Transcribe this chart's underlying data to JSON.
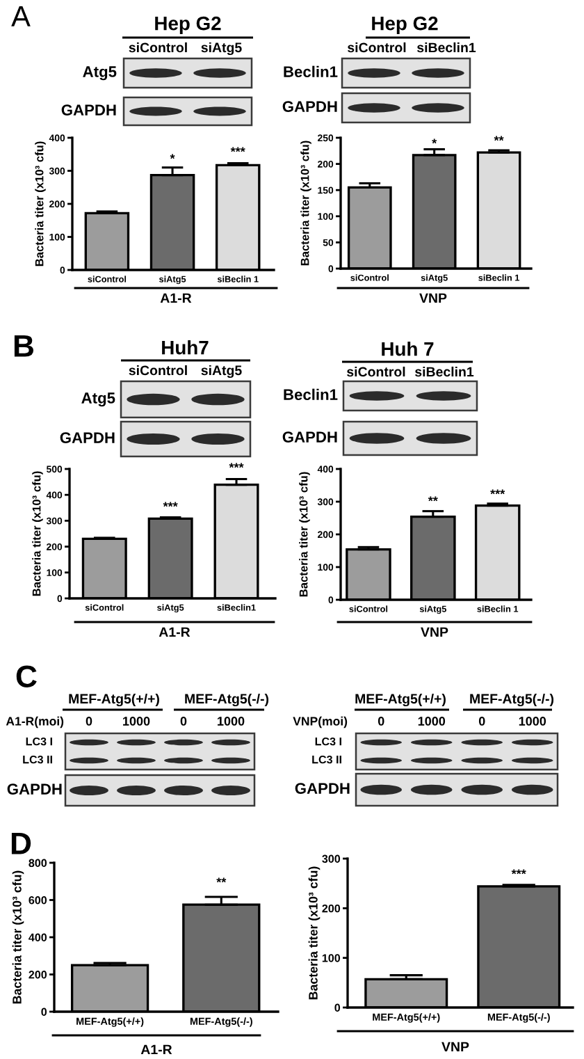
{
  "chart_data": [
    {
      "type": "other",
      "title": "A"
    },
    {
      "type": "other",
      "title": "Hep G2",
      "categories": [
        "siControl",
        "siAtg5"
      ],
      "y_categories": [
        "Atg5",
        "GAPDH"
      ]
    },
    {
      "type": "other",
      "title": "Hep G2",
      "categories": [
        "siControl",
        "siBeclin1"
      ],
      "y_categories": [
        "Beclin1",
        "GAPDH"
      ]
    },
    {
      "type": "bar",
      "categories": [
        "siControl",
        "siAtg5",
        "siBeclin 1"
      ],
      "values": [
        172,
        287,
        317
      ],
      "errors": [
        [
          172,
          177
        ],
        [
          287,
          310
        ],
        [
          317,
          323
        ]
      ],
      "colors": [
        "#9c9c9c",
        "#6b6b6b",
        "#dcdcdc"
      ],
      "ylim": [
        0,
        400
      ],
      "yticks": [
        0,
        100,
        200,
        300,
        400
      ],
      "xlabel": "A1-R",
      "ylabel": "Bacteria titer (x10³ cfu)",
      "annotations": [
        "*",
        "***"
      ]
    },
    {
      "type": "bar",
      "categories": [
        "siControl",
        "siAtg5",
        "siBeclin 1"
      ],
      "values": [
        155,
        217,
        222
      ],
      "errors": [
        [
          155,
          163
        ],
        [
          217,
          228
        ],
        [
          222,
          226
        ]
      ],
      "colors": [
        "#9c9c9c",
        "#6b6b6b",
        "#dcdcdc"
      ],
      "ylim": [
        0,
        250
      ],
      "yticks": [
        0,
        50,
        100,
        150,
        200,
        250
      ],
      "xlabel": "VNP",
      "ylabel": "Bacteria titer (x10³ cfu)",
      "annotations": [
        "*",
        "**"
      ]
    },
    {
      "type": "other",
      "title": "B"
    },
    {
      "type": "other",
      "title": "Huh7",
      "categories": [
        "siControl",
        "siAtg5"
      ],
      "y_categories": [
        "Atg5",
        "GAPDH"
      ]
    },
    {
      "type": "other",
      "title": "Huh 7",
      "categories": [
        "siControl",
        "siBeclin1"
      ],
      "y_categories": [
        "Beclin1",
        "GAPDH"
      ]
    },
    {
      "type": "bar",
      "categories": [
        "siControl",
        "siAtg5",
        "siBeclin1"
      ],
      "values": [
        230,
        308,
        439
      ],
      "errors": [
        [
          230,
          234
        ],
        [
          308,
          313
        ],
        [
          439,
          461
        ]
      ],
      "colors": [
        "#9c9c9c",
        "#6b6b6b",
        "#dcdcdc"
      ],
      "ylim": [
        0,
        500
      ],
      "yticks": [
        0,
        100,
        200,
        300,
        400,
        500
      ],
      "xlabel": "A1-R",
      "ylabel": "Bacteria titer (x10³ cfu)",
      "annotations": [
        "***",
        "***"
      ]
    },
    {
      "type": "bar",
      "categories": [
        "siControl",
        "siAtg5",
        "siBeclin 1"
      ],
      "values": [
        154,
        254,
        288
      ],
      "errors": [
        [
          154,
          161
        ],
        [
          254,
          271
        ],
        [
          288,
          294
        ]
      ],
      "colors": [
        "#9c9c9c",
        "#6b6b6b",
        "#dcdcdc"
      ],
      "ylim": [
        0,
        400
      ],
      "yticks": [
        0,
        100,
        200,
        300,
        400
      ],
      "xlabel": "VNP",
      "ylabel": "Bacteria titer (x10³ cfu)",
      "annotations": [
        "**",
        "***"
      ]
    },
    {
      "type": "other",
      "title": "C"
    },
    {
      "type": "other",
      "xlabel": "A1-R(moi)",
      "categories": [
        "0",
        "1000",
        "0",
        "1000"
      ],
      "y_categories": [
        "LC3 I",
        "LC3 II",
        "GAPDH"
      ],
      "annotations": [
        "MEF-Atg5(+/+)",
        "MEF-Atg5(-/-)"
      ]
    },
    {
      "type": "other",
      "xlabel": "VNP(moi)",
      "categories": [
        "0",
        "1000",
        "0",
        "1000"
      ],
      "y_categories": [
        "LC3 I",
        "LC3 II",
        "GAPDH"
      ],
      "annotations": [
        "MEF-Atg5(+/+)",
        "MEF-Atg5(-/-)"
      ]
    },
    {
      "type": "other",
      "title": "D"
    },
    {
      "type": "bar",
      "categories": [
        "MEF-Atg5(+/+)",
        "MEF-Atg5(-/-)"
      ],
      "values": [
        250,
        575
      ],
      "errors": [
        [
          250,
          262
        ],
        [
          575,
          617
        ]
      ],
      "colors": [
        "#9c9c9c",
        "#6b6b6b"
      ],
      "ylim": [
        0,
        800
      ],
      "yticks": [
        0,
        200,
        400,
        600,
        800
      ],
      "xlabel": "A1-R",
      "ylabel": "Bacteria titer (x10³ cfu)",
      "annotations": [
        "**"
      ]
    },
    {
      "type": "bar",
      "categories": [
        "MEF-Atg5(+/+)",
        "MEF-Atg5(-/-)"
      ],
      "values": [
        57,
        244
      ],
      "errors": [
        [
          57,
          65
        ],
        [
          244,
          247
        ]
      ],
      "colors": [
        "#9c9c9c",
        "#6b6b6b"
      ],
      "ylim": [
        0,
        300
      ],
      "yticks": [
        0,
        100,
        200,
        300
      ],
      "xlabel": "VNP",
      "ylabel": "Bacteria titer (x10³ cfu)",
      "annotations": [
        "***"
      ]
    }
  ]
}
